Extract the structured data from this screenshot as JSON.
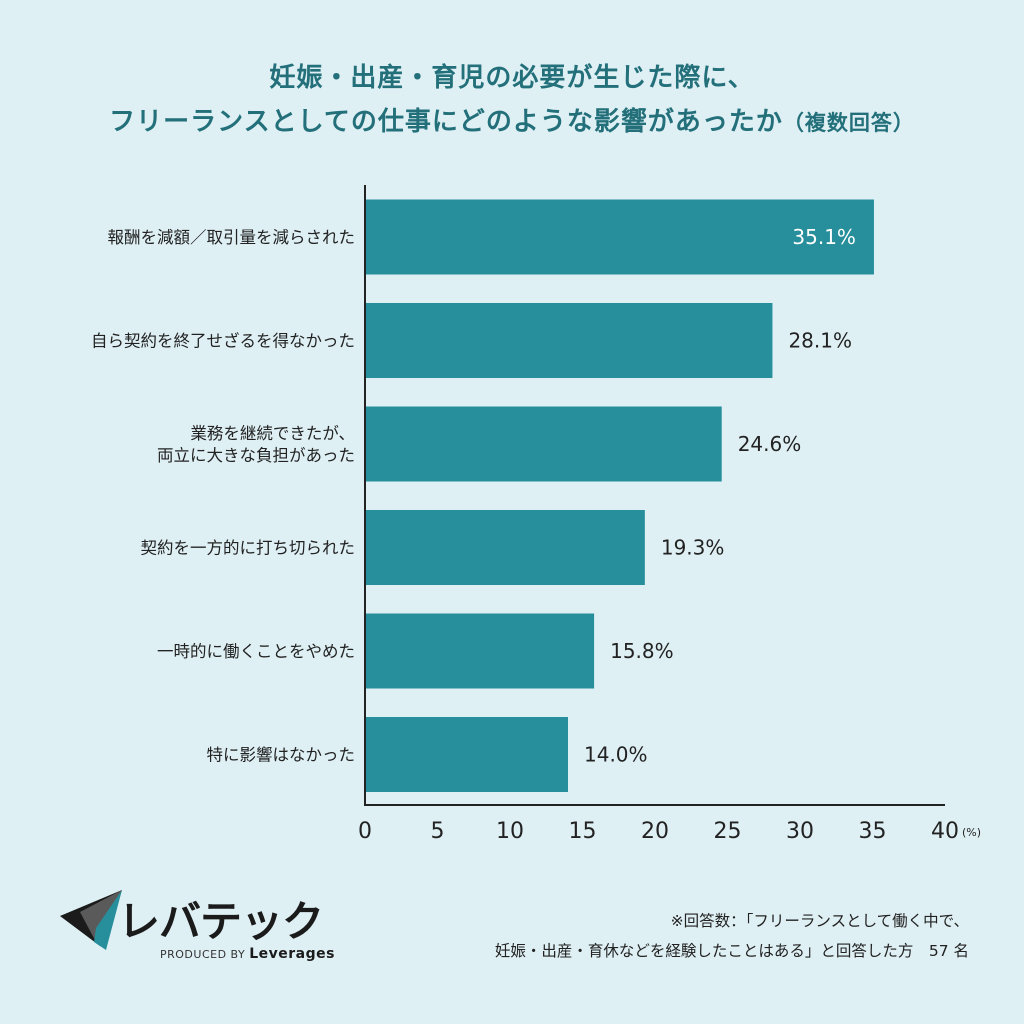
{
  "title": {
    "line1": "妊娠・出産・育児の必要が生じた際に、",
    "line2": "フリーランスとしての仕事にどのような影響があったか",
    "note": "（複数回答）"
  },
  "chart_data": {
    "type": "bar",
    "orientation": "horizontal",
    "categories": [
      [
        "報酬を減額／取引量を減らされた"
      ],
      [
        "自ら契約を終了せざるを得なかった"
      ],
      [
        "業務を継続できたが、",
        "両立に大きな負担があった"
      ],
      [
        "契約を一方的に打ち切られた"
      ],
      [
        "一時的に働くことをやめた"
      ],
      [
        "特に影響はなかった"
      ]
    ],
    "values": [
      35.1,
      28.1,
      24.6,
      19.3,
      15.8,
      14.0
    ],
    "value_labels": [
      "35.1%",
      "28.1%",
      "24.6%",
      "19.3%",
      "15.8%",
      "14.0%"
    ],
    "xlim": [
      0,
      40
    ],
    "ticks": [
      0,
      5,
      10,
      15,
      20,
      25,
      30,
      35,
      40
    ],
    "unit": "(%)",
    "bar_color": "#268f9b",
    "grid": false
  },
  "logo": {
    "brand": "レバテック",
    "produced_prefix": "PRODUCED BY",
    "produced_name": "Leverages"
  },
  "footnote": {
    "line1": "※回答数：「フリーランスとして働く中で、",
    "line2": "妊娠・出産・育休などを経験したことはある」と回答した方　57 名"
  },
  "colors": {
    "background": "#dff0f5",
    "title": "#23707a",
    "bar": "#268f9b"
  }
}
